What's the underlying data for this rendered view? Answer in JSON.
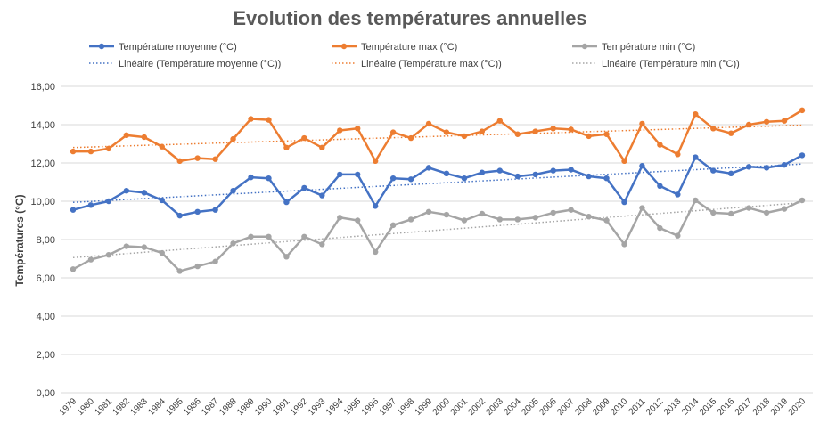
{
  "chart_data": {
    "type": "line",
    "title": "Evolution des températures annuelles",
    "xlabel": "",
    "ylabel": "Températures (°C)",
    "ylim": [
      0,
      16
    ],
    "yticks": [
      "0,00",
      "2,00",
      "4,00",
      "6,00",
      "8,00",
      "10,00",
      "12,00",
      "14,00",
      "16,00"
    ],
    "grid": true,
    "legend_position": "top",
    "x": [
      "1979",
      "1980",
      "1981",
      "1982",
      "1983",
      "1984",
      "1985",
      "1986",
      "1987",
      "1988",
      "1989",
      "1990",
      "1991",
      "1992",
      "1993",
      "1994",
      "1995",
      "1996",
      "1997",
      "1998",
      "1999",
      "2000",
      "2001",
      "2002",
      "2003",
      "2004",
      "2005",
      "2006",
      "2007",
      "2008",
      "2009",
      "2010",
      "2011",
      "2012",
      "2013",
      "2014",
      "2015",
      "2016",
      "2017",
      "2018",
      "2019",
      "2020"
    ],
    "series": [
      {
        "name": "Température moyenne (°C)",
        "color": "#4472c4",
        "trend_name": "Linéaire (Température moyenne (°C))",
        "values": [
          9.55,
          9.8,
          10.0,
          10.55,
          10.45,
          10.05,
          9.25,
          9.45,
          9.55,
          10.55,
          11.25,
          11.2,
          9.95,
          10.7,
          10.3,
          11.4,
          11.4,
          9.75,
          11.2,
          11.15,
          11.75,
          11.45,
          11.2,
          11.5,
          11.6,
          11.3,
          11.4,
          11.6,
          11.65,
          11.3,
          11.2,
          9.95,
          11.85,
          10.8,
          10.35,
          12.3,
          11.6,
          11.45,
          11.8,
          11.75,
          11.9,
          12.4
        ]
      },
      {
        "name": "Température max (°C)",
        "color": "#ed7d31",
        "trend_name": "Linéaire (Température max (°C))",
        "values": [
          12.6,
          12.6,
          12.75,
          13.45,
          13.35,
          12.85,
          12.1,
          12.25,
          12.2,
          13.25,
          14.3,
          14.25,
          12.8,
          13.3,
          12.8,
          13.7,
          13.8,
          12.1,
          13.6,
          13.3,
          14.05,
          13.6,
          13.4,
          13.65,
          14.2,
          13.5,
          13.65,
          13.8,
          13.75,
          13.4,
          13.5,
          12.1,
          14.05,
          12.95,
          12.45,
          14.55,
          13.8,
          13.55,
          14.0,
          14.15,
          14.2,
          14.75
        ]
      },
      {
        "name": "Température min (°C)",
        "color": "#a5a5a5",
        "trend_name": "Linéaire (Température min (°C))",
        "values": [
          6.45,
          6.95,
          7.2,
          7.65,
          7.6,
          7.3,
          6.35,
          6.6,
          6.85,
          7.8,
          8.15,
          8.15,
          7.1,
          8.15,
          7.75,
          9.15,
          9.0,
          7.35,
          8.75,
          9.05,
          9.45,
          9.3,
          9.0,
          9.35,
          9.05,
          9.05,
          9.15,
          9.4,
          9.55,
          9.2,
          9.0,
          7.75,
          9.65,
          8.6,
          8.2,
          10.05,
          9.4,
          9.35,
          9.65,
          9.4,
          9.6,
          10.05
        ]
      }
    ]
  }
}
